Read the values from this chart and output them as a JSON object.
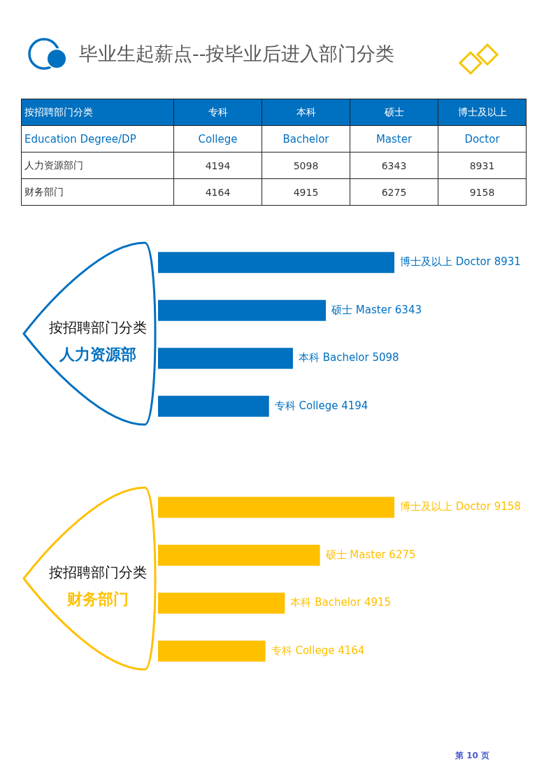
{
  "chart_data": [
    {
      "type": "heatmap",
      "title": "毕业生起薪点--按毕业后进入部门分类",
      "ylabel": "按招聘部门分类",
      "categories": [
        "专科",
        "本科",
        "硕士",
        "博士及以上"
      ],
      "y_categories": [
        "Education Degree/DP",
        "人力资源部门",
        "财务部门"
      ],
      "cells": [
        [
          null,
          null,
          null,
          null
        ],
        [
          4194,
          5098,
          6343,
          8931
        ],
        [
          4164,
          4915,
          6275,
          9158
        ]
      ],
      "cell_labels": [
        [
          "College",
          "Bachelor",
          "Master",
          "Doctor"
        ],
        [
          "4194",
          "5098",
          "6343",
          "8931"
        ],
        [
          "4164",
          "4915",
          "6275",
          "9158"
        ]
      ]
    },
    {
      "type": "bar",
      "orientation": "horizontal",
      "title": "按招聘部门分类",
      "subtitle": "人力资源部",
      "categories": [
        null,
        null,
        null,
        null
      ],
      "values": [
        8931,
        6343,
        5098,
        4194
      ],
      "value_labels": [
        "博士及以上 Doctor 8931",
        "硕士 Master 6343",
        "本科 Bachelor 5098",
        "专科 College 4194"
      ],
      "color": "#0070c0",
      "tick_labels": false
    },
    {
      "type": "bar",
      "orientation": "horizontal",
      "title": "按招聘部门分类",
      "subtitle": "财务部门",
      "categories": [
        null,
        null,
        null,
        null
      ],
      "values": [
        9158,
        6275,
        4915,
        4164
      ],
      "value_labels": [
        "博士及以上 Doctor 9158",
        "硕士 Master 6275",
        "本科 Bachelor 4915",
        "专科 College 4164"
      ],
      "color": "#ffc000",
      "tick_labels": false,
      "annotations": [
        "第 10 页"
      ]
    }
  ]
}
